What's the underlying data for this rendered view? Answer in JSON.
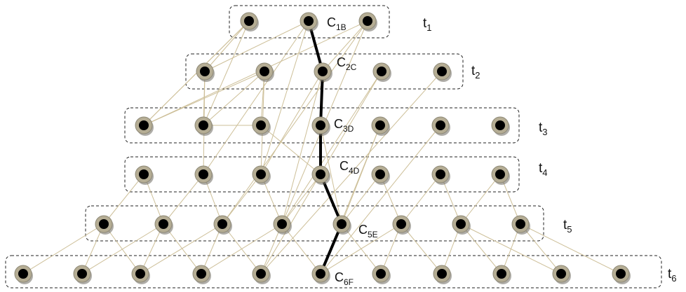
{
  "levels": [
    {
      "id": "t1",
      "label": "t",
      "sub": "1",
      "node_count": 3
    },
    {
      "id": "t2",
      "label": "t",
      "sub": "2",
      "node_count": 5
    },
    {
      "id": "t3",
      "label": "t",
      "sub": "3",
      "node_count": 7
    },
    {
      "id": "t4",
      "label": "t",
      "sub": "4",
      "node_count": 7
    },
    {
      "id": "t5",
      "label": "t",
      "sub": "5",
      "node_count": 8
    },
    {
      "id": "t6",
      "label": "t",
      "sub": "6",
      "node_count": 11
    }
  ],
  "path_nodes": [
    {
      "id": "C1B",
      "label": "C",
      "sub": "1B"
    },
    {
      "id": "C2C",
      "label": "C",
      "sub": "2C"
    },
    {
      "id": "C3D",
      "label": "C",
      "sub": "3D"
    },
    {
      "id": "C4D",
      "label": "C",
      "sub": "4D"
    },
    {
      "id": "C5E",
      "label": "C",
      "sub": "5E"
    },
    {
      "id": "C6F",
      "label": "C",
      "sub": "6F"
    }
  ],
  "colors": {
    "edge": "#cdbf98",
    "path": "#000000",
    "node_ring": "#b5ad94",
    "node_core": "#000000",
    "box": "#222222"
  }
}
